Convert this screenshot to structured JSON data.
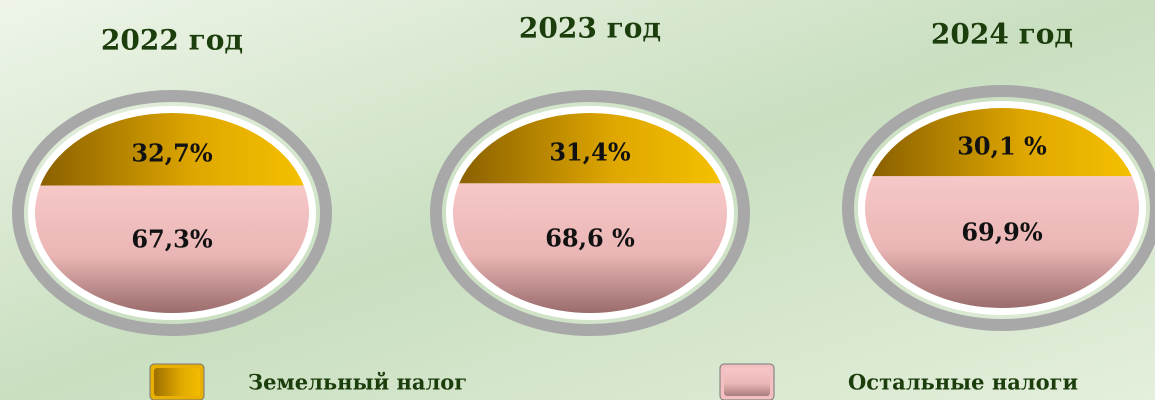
{
  "chart_data": [
    {
      "type": "pie",
      "title": "2022 год",
      "values": [
        32.7,
        67.3
      ],
      "value_labels": [
        "32,7%",
        "67,3%"
      ]
    },
    {
      "type": "pie",
      "title": "2023 год",
      "values": [
        31.4,
        68.6
      ],
      "value_labels": [
        "31,4%",
        "68,6 %"
      ]
    },
    {
      "type": "pie",
      "title": "2024 год",
      "values": [
        30.1,
        69.9
      ],
      "value_labels": [
        "30,1 %",
        "69,9%"
      ]
    }
  ],
  "legend": {
    "labels": [
      "Земельный налог",
      "Остальные налоги"
    ],
    "colors": [
      "#e8b000",
      "#f2c0c0"
    ]
  }
}
